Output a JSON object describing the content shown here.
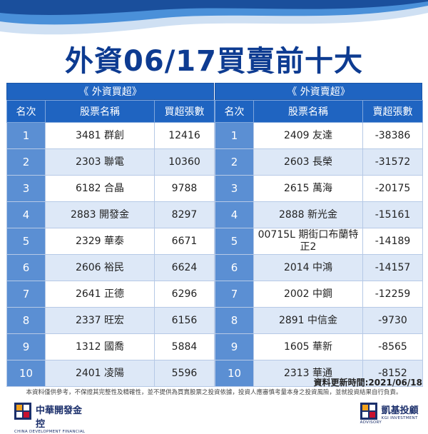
{
  "title": "外資06/17買賣前十大",
  "buy": {
    "section_title": "《 外資買超》",
    "headers": [
      "名次",
      "股票名稱",
      "買超張數"
    ],
    "rows": [
      {
        "rank": "1",
        "name": "3481 群創",
        "value": "12416"
      },
      {
        "rank": "2",
        "name": "2303 聯電",
        "value": "10360"
      },
      {
        "rank": "3",
        "name": "6182 合晶",
        "value": "9788"
      },
      {
        "rank": "4",
        "name": "2883 開發金",
        "value": "8297"
      },
      {
        "rank": "5",
        "name": "2329 華泰",
        "value": "6671"
      },
      {
        "rank": "6",
        "name": "2606 裕民",
        "value": "6624"
      },
      {
        "rank": "7",
        "name": "2641 正德",
        "value": "6296"
      },
      {
        "rank": "8",
        "name": "2337 旺宏",
        "value": "6156"
      },
      {
        "rank": "9",
        "name": "1312 國喬",
        "value": "5884"
      },
      {
        "rank": "10",
        "name": "2401 凌陽",
        "value": "5596"
      }
    ]
  },
  "sell": {
    "section_title": "《 外資賣超》",
    "headers": [
      "名次",
      "股票名稱",
      "賣超張數"
    ],
    "rows": [
      {
        "rank": "1",
        "name": "2409 友達",
        "value": "-38386"
      },
      {
        "rank": "2",
        "name": "2603 長榮",
        "value": "-31572"
      },
      {
        "rank": "3",
        "name": "2615 萬海",
        "value": "-20175"
      },
      {
        "rank": "4",
        "name": "2888 新光金",
        "value": "-15161"
      },
      {
        "rank": "5",
        "name": "00715L 期街口布蘭特正2",
        "value": "-14189"
      },
      {
        "rank": "6",
        "name": "2014 中鴻",
        "value": "-14157"
      },
      {
        "rank": "7",
        "name": "2002 中鋼",
        "value": "-12259"
      },
      {
        "rank": "8",
        "name": "2891 中信金",
        "value": "-9730"
      },
      {
        "rank": "9",
        "name": "1605 華新",
        "value": "-8565"
      },
      {
        "rank": "10",
        "name": "2313 華通",
        "value": "-8152"
      }
    ]
  },
  "update_time": "資料更新時間:2021/06/18",
  "disclaimer": "本資料僅供參考，不保證其完整性及精確性，並不提供為買賣股票之投資依據，投資人應審慎考量本身之投資風險，並就投資結果自行負責。",
  "footer": {
    "left_logo_name": "中華開發金控",
    "left_logo_sub": "CHINA DEVELOPMENT FINANCIAL",
    "right_logo_name": "凱基投顧",
    "right_logo_sub": "KGI INVESTMENT ADVISORY"
  },
  "colors": {
    "title": "#0d3b91",
    "header": "#1f64c1",
    "rank_cell": "#5b8fd3",
    "stripe": "#dde8f7"
  }
}
